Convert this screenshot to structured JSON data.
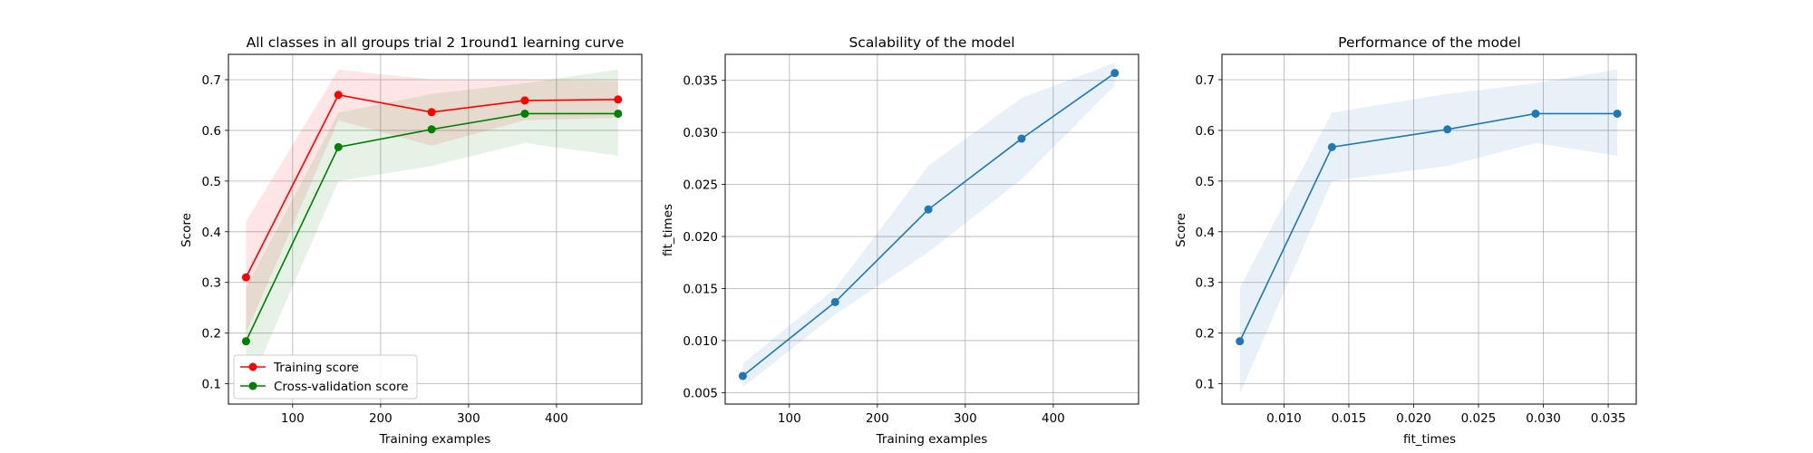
{
  "chart_data": [
    {
      "type": "line",
      "title": "All classes in all groups trial 2 1round1 learning curve",
      "xlabel": "Training examples",
      "ylabel": "Score",
      "xlim": [
        27,
        497
      ],
      "ylim": [
        0.06,
        0.75
      ],
      "xticks": [
        100,
        200,
        300,
        400
      ],
      "yticks": [
        0.1,
        0.2,
        0.3,
        0.4,
        0.5,
        0.6,
        0.7
      ],
      "grid": true,
      "legend": "lower-left",
      "x": [
        47,
        152,
        258,
        364,
        470
      ],
      "series": [
        {
          "name": "Training score",
          "color": "#ff0000",
          "values": [
            0.31,
            0.67,
            0.636,
            0.659,
            0.661
          ],
          "band_lower": [
            0.2,
            0.62,
            0.57,
            0.62,
            0.625
          ],
          "band_upper": [
            0.42,
            0.72,
            0.7,
            0.7,
            0.697
          ]
        },
        {
          "name": "Cross-validation score",
          "color": "#008000",
          "values": [
            0.184,
            0.567,
            0.602,
            0.633,
            0.633
          ],
          "band_lower": [
            0.08,
            0.5,
            0.53,
            0.575,
            0.55
          ],
          "band_upper": [
            0.29,
            0.635,
            0.672,
            0.693,
            0.72
          ]
        }
      ]
    },
    {
      "type": "line",
      "title": "Scalability of the model",
      "xlabel": "Training examples",
      "ylabel": "fit_times",
      "xlim": [
        27,
        497
      ],
      "ylim": [
        0.0039,
        0.0375
      ],
      "xticks": [
        100,
        200,
        300,
        400
      ],
      "yticks": [
        0.005,
        0.01,
        0.015,
        0.02,
        0.025,
        0.03,
        0.035
      ],
      "ytick_labels": [
        "0.005",
        "0.010",
        "0.015",
        "0.020",
        "0.025",
        "0.030",
        "0.035"
      ],
      "grid": true,
      "x": [
        47,
        152,
        258,
        364,
        470
      ],
      "series": [
        {
          "color": "#1f77b4",
          "values": [
            0.0066,
            0.0137,
            0.0226,
            0.0294,
            0.0357
          ],
          "band_lower": [
            0.0055,
            0.0125,
            0.0185,
            0.0255,
            0.0345
          ],
          "band_upper": [
            0.0078,
            0.015,
            0.0268,
            0.0333,
            0.0367
          ]
        }
      ]
    },
    {
      "type": "line",
      "title": "Performance of the model",
      "xlabel": "fit_times",
      "ylabel": "Score",
      "xlim": [
        0.00522,
        0.03716
      ],
      "ylim": [
        0.06,
        0.75
      ],
      "xticks": [
        0.01,
        0.015,
        0.02,
        0.025,
        0.03,
        0.035
      ],
      "xtick_labels": [
        "0.010",
        "0.015",
        "0.020",
        "0.025",
        "0.030",
        "0.035"
      ],
      "yticks": [
        0.1,
        0.2,
        0.3,
        0.4,
        0.5,
        0.6,
        0.7
      ],
      "grid": true,
      "x": [
        0.0066,
        0.0137,
        0.0226,
        0.0294,
        0.0357
      ],
      "series": [
        {
          "color": "#1f77b4",
          "values": [
            0.184,
            0.567,
            0.602,
            0.633,
            0.633
          ],
          "band_lower": [
            0.08,
            0.5,
            0.53,
            0.575,
            0.55
          ],
          "band_upper": [
            0.29,
            0.635,
            0.672,
            0.693,
            0.72
          ]
        }
      ]
    }
  ]
}
